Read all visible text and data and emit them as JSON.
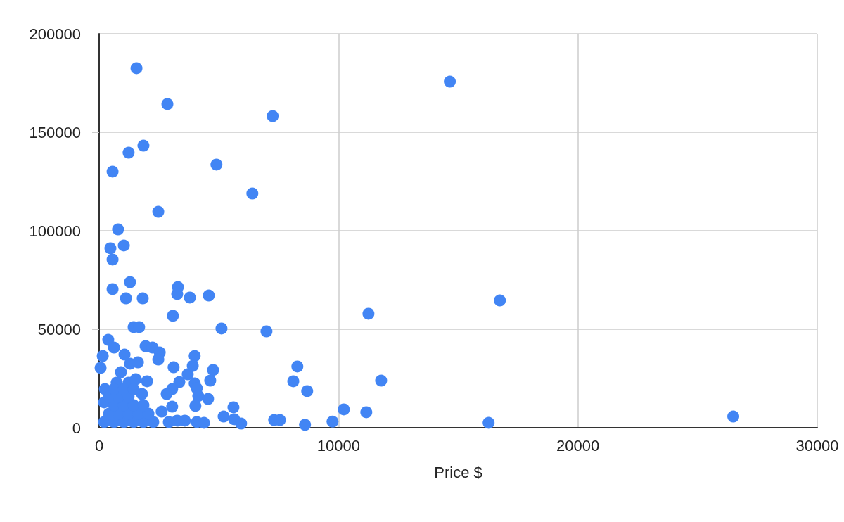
{
  "chart_data": {
    "type": "scatter",
    "xlabel": "Price $",
    "color": "#4285f4",
    "marker": "circle",
    "grid": true,
    "xlim": [
      0,
      30000
    ],
    "xticks": [
      0,
      10000,
      20000,
      30000
    ],
    "ylim": [
      0,
      200000
    ],
    "yticks": [
      0,
      50000,
      100000,
      150000,
      200000
    ],
    "x": [
      1560,
      2850,
      14650,
      7250,
      1850,
      1230,
      560,
      4900,
      6400,
      2470,
      790,
      1030,
      470,
      560,
      560,
      1290,
      3290,
      3260,
      1120,
      1820,
      3790,
      4580,
      16740,
      11250,
      3080,
      1440,
      1670,
      5110,
      6990,
      380,
      620,
      150,
      60,
      1060,
      1290,
      1620,
      1940,
      2230,
      2530,
      2470,
      3110,
      3990,
      3910,
      3700,
      3350,
      3050,
      2820,
      3990,
      4080,
      4140,
      4550,
      4760,
      4640,
      4020,
      3050,
      910,
      730,
      1230,
      1530,
      2000,
      240,
      210,
      1790,
      2610,
      5610,
      5200,
      5640,
      5930,
      8280,
      8110,
      8690,
      7310,
      7550,
      8600,
      9750,
      10220,
      11780,
      11160,
      16270,
      26490,
      2910,
      3260,
      3580,
      4080,
      4380,
      210,
      620,
      1030,
      1440,
      1850,
      2260,
      410,
      820,
      1230,
      1640,
      2060,
      620,
      1030,
      1440,
      1850,
      410,
      820,
      1230,
      620,
      1030,
      1440
    ],
    "values": [
      182500,
      164300,
      175700,
      158200,
      143200,
      139600,
      130000,
      133600,
      118900,
      109600,
      100700,
      92500,
      91100,
      85400,
      70400,
      73900,
      71400,
      67900,
      65700,
      65700,
      66100,
      67100,
      64600,
      57900,
      56800,
      51100,
      51100,
      50400,
      48900,
      44600,
      40700,
      36400,
      30400,
      37100,
      32500,
      33200,
      41400,
      40700,
      38200,
      34600,
      30700,
      36400,
      31400,
      27100,
      23200,
      19600,
      17100,
      22500,
      20000,
      16100,
      14600,
      29300,
      23900,
      11100,
      10700,
      28200,
      22900,
      22900,
      24600,
      23600,
      19600,
      12900,
      17100,
      8200,
      10400,
      5700,
      4300,
      2100,
      31100,
      23600,
      18600,
      3900,
      3900,
      1500,
      3100,
      9300,
      23900,
      7900,
      2500,
      5700,
      2900,
      3600,
      3600,
      2900,
      2500,
      2900,
      2900,
      2900,
      2900,
      2900,
      2900,
      7100,
      7100,
      7100,
      7100,
      7100,
      11400,
      11400,
      11400,
      11400,
      15700,
      15700,
      15700,
      19600,
      19600,
      19600
    ]
  }
}
